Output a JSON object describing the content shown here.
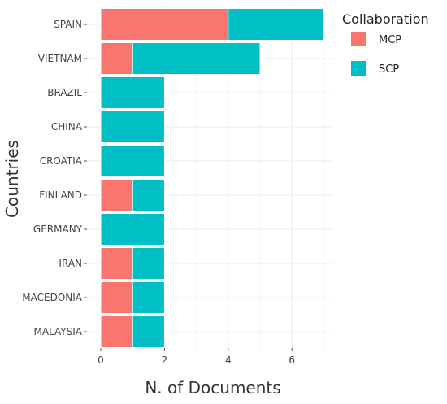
{
  "chart_data": {
    "type": "bar",
    "orientation": "horizontal",
    "stacked": true,
    "categories": [
      "SPAIN",
      "VIETNAM",
      "BRAZIL",
      "CHINA",
      "CROATIA",
      "FINLAND",
      "GERMANY",
      "IRAN",
      "MACEDONIA",
      "MALAYSIA"
    ],
    "series": [
      {
        "name": "MCP",
        "values": [
          4,
          1,
          0,
          0,
          0,
          1,
          0,
          1,
          1,
          1
        ],
        "color": "#F8766D"
      },
      {
        "name": "SCP",
        "values": [
          3,
          4,
          2,
          2,
          2,
          1,
          2,
          1,
          1,
          1
        ],
        "color": "#00BFC4"
      }
    ],
    "title": "",
    "xlabel": "N. of Documents",
    "ylabel": "Countries",
    "xlim": [
      0,
      7.35
    ],
    "xticks": [
      0,
      2,
      4,
      6
    ],
    "grid": true,
    "legend": {
      "title": "Collaboration",
      "placement": "right-top"
    }
  }
}
